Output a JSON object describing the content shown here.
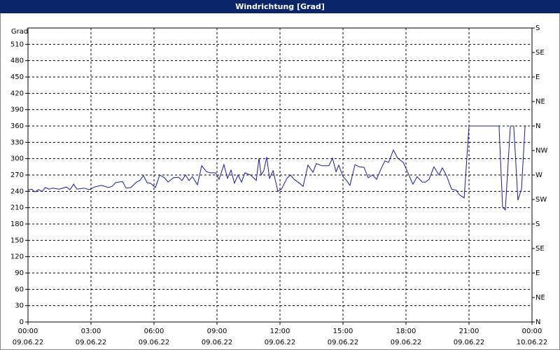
{
  "chart_data": {
    "type": "line",
    "title": "Windrichtung [Grad]",
    "ylabel": "Grad",
    "color": "#1a1a9c",
    "grid": true,
    "xlim": [
      0,
      24
    ],
    "xticks": [
      {
        "value": 0,
        "label": "00:00"
      },
      {
        "value": 3,
        "label": "03:00"
      },
      {
        "value": 6,
        "label": "06:00"
      },
      {
        "value": 9,
        "label": "09:00"
      },
      {
        "value": 12,
        "label": "12:00"
      },
      {
        "value": 15,
        "label": "15:00"
      },
      {
        "value": 18,
        "label": "18:00"
      },
      {
        "value": 21,
        "label": "21:00"
      },
      {
        "value": 24,
        "label": "00:00"
      }
    ],
    "xtick_dates": [
      "09.06.22",
      "09.06.22",
      "09.06.22",
      "09.06.22",
      "09.06.22",
      "09.06.22",
      "09.06.22",
      "09.06.22",
      "10.06.22"
    ],
    "ylim": [
      0,
      540
    ],
    "yticks": [
      0,
      30,
      60,
      90,
      120,
      150,
      180,
      210,
      240,
      270,
      300,
      330,
      360,
      390,
      420,
      450,
      480,
      510
    ],
    "y2lim": [
      0,
      540
    ],
    "y2ticks": [
      {
        "value": 0,
        "label": "N"
      },
      {
        "value": 45,
        "label": "NE"
      },
      {
        "value": 90,
        "label": "E"
      },
      {
        "value": 135,
        "label": "SE"
      },
      {
        "value": 180,
        "label": "S"
      },
      {
        "value": 225,
        "label": "SW"
      },
      {
        "value": 270,
        "label": "W"
      },
      {
        "value": 315,
        "label": "NW"
      },
      {
        "value": 360,
        "label": "N"
      },
      {
        "value": 405,
        "label": "NE"
      },
      {
        "value": 450,
        "label": "E"
      },
      {
        "value": 495,
        "label": "SE"
      },
      {
        "value": 540,
        "label": "S"
      }
    ],
    "x": [
      0,
      0.17,
      0.33,
      0.5,
      0.67,
      0.83,
      1,
      1.17,
      1.5,
      1.83,
      2,
      2.17,
      2.33,
      2.67,
      2.93,
      3.17,
      3.5,
      3.83,
      4,
      4.17,
      4.5,
      4.67,
      4.9,
      5.17,
      5.33,
      5.5,
      5.67,
      5.83,
      6.07,
      6.27,
      6.5,
      6.67,
      6.93,
      7.17,
      7.33,
      7.5,
      7.67,
      7.83,
      8.07,
      8.27,
      8.5,
      8.67,
      8.93,
      9.1,
      9.33,
      9.5,
      9.67,
      9.83,
      10,
      10.17,
      10.33,
      10.6,
      10.87,
      11,
      11.1,
      11.23,
      11.37,
      11.5,
      11.67,
      11.9,
      12.07,
      12.33,
      12.5,
      12.67,
      12.93,
      13.1,
      13.33,
      13.57,
      13.73,
      14,
      14.33,
      14.5,
      14.67,
      14.8,
      15,
      15.17,
      15.33,
      15.57,
      15.77,
      16,
      16.2,
      16.4,
      16.6,
      16.83,
      17,
      17.17,
      17.4,
      17.6,
      17.87,
      18.07,
      18.33,
      18.53,
      18.77,
      18.93,
      19.1,
      19.33,
      19.57,
      19.73,
      19.93,
      20.17,
      20.4,
      20.53,
      20.77,
      21,
      22.43,
      22.6,
      22.73,
      22.97,
      23.13,
      23.33,
      23.5,
      23.67,
      23.73
    ],
    "values": [
      242,
      244,
      239,
      243,
      240,
      247,
      244,
      246,
      244,
      248,
      243,
      253,
      244,
      246,
      243,
      248,
      251,
      247,
      249,
      256,
      258,
      246,
      247,
      257,
      260,
      269,
      256,
      255,
      247,
      270,
      265,
      257,
      265,
      266,
      260,
      270,
      260,
      267,
      252,
      287,
      276,
      274,
      274,
      262,
      289,
      264,
      279,
      255,
      270,
      257,
      274,
      270,
      260,
      301,
      270,
      278,
      303,
      264,
      278,
      240,
      244,
      264,
      270,
      262,
      255,
      249,
      288,
      275,
      291,
      287,
      287,
      301,
      276,
      288,
      267,
      260,
      251,
      289,
      285,
      284,
      265,
      270,
      262,
      283,
      296,
      293,
      316,
      301,
      293,
      276,
      253,
      267,
      257,
      257,
      262,
      285,
      270,
      283,
      269,
      244,
      242,
      234,
      228,
      360,
      360,
      211,
      206,
      360,
      360,
      224,
      244,
      360,
      360
    ]
  }
}
